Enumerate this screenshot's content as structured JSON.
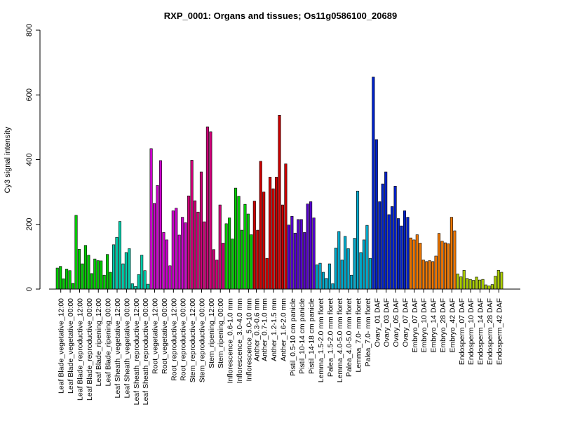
{
  "chart_data": {
    "type": "bar",
    "title": "RXP_0001: Organs and tissues; Os11g0586100_20689",
    "xlabel": "",
    "ylabel": "Cy3 signal intensity",
    "ylim": [
      0,
      800
    ],
    "yticks": [
      0,
      200,
      400,
      600,
      800
    ],
    "grid": false,
    "groups": [
      {
        "label": "Leaf Blade_vegetative_12:00",
        "color": "#00cc00",
        "values": [
          65,
          70,
          32
        ]
      },
      {
        "label": "Leaf Blade_vegetative_00:00",
        "color": "#00cc00",
        "values": [
          62,
          57,
          18
        ]
      },
      {
        "label": "Leaf Blade_reproductive_12:00",
        "color": "#00cc00",
        "values": [
          228,
          123,
          78
        ]
      },
      {
        "label": "Leaf Blade_reproductive_00:00",
        "color": "#00cc00",
        "values": [
          135,
          105,
          48
        ]
      },
      {
        "label": "Leaf Blade_ripening_12:00",
        "color": "#00cc00",
        "values": [
          93,
          88,
          87
        ]
      },
      {
        "label": "Leaf Blade_ripening_00:00",
        "color": "#00cc00",
        "values": [
          43,
          107,
          52
        ]
      },
      {
        "label": "Leaf Sheath_vegetative_12:00",
        "color": "#00ccaa",
        "values": [
          137,
          160,
          209
        ]
      },
      {
        "label": "Leaf Sheath_vegetative_00:00",
        "color": "#00ccaa",
        "values": [
          78,
          113,
          125
        ]
      },
      {
        "label": "Leaf Sheath_reproductive_12:00",
        "color": "#00ccaa",
        "values": [
          17,
          8,
          45
        ]
      },
      {
        "label": "Leaf Sheath_reproductive_00:00",
        "color": "#00ccaa",
        "values": [
          105,
          57,
          15
        ]
      },
      {
        "label": "Root_vegetative_12:00",
        "color": "#cc00cc",
        "values": [
          434,
          265,
          320
        ]
      },
      {
        "label": "Root_vegetative_00:00",
        "color": "#cc00cc",
        "values": [
          397,
          175,
          152
        ]
      },
      {
        "label": "Root_reproductive_12:00",
        "color": "#cc00cc",
        "values": [
          72,
          242,
          250
        ]
      },
      {
        "label": "Root_reproductive_00:00",
        "color": "#cc00cc",
        "values": [
          167,
          222,
          205
        ]
      },
      {
        "label": "Stem_reproductive_12:00",
        "color": "#cc0077",
        "values": [
          288,
          398,
          273
        ]
      },
      {
        "label": "Stem_reproductive_00:00",
        "color": "#cc0077",
        "values": [
          238,
          362,
          208
        ]
      },
      {
        "label": "Stem_ripening_12:00",
        "color": "#cc0077",
        "values": [
          501,
          486,
          122
        ]
      },
      {
        "label": "Stem_ripening_00:00",
        "color": "#cc0077",
        "values": [
          90,
          260,
          142
        ]
      },
      {
        "label": "Inflorescence_0.6-1.0 mm",
        "color": "#00cc00",
        "values": [
          202,
          220,
          155
        ]
      },
      {
        "label": "Inflorescence_3.0-4.0 mm",
        "color": "#00cc00",
        "values": [
          312,
          287,
          182
        ]
      },
      {
        "label": "Inflorescence_5.0-10 mm",
        "color": "#00cc00",
        "values": [
          262,
          232,
          168
        ]
      },
      {
        "label": "Anther_0.3-0.6 mm",
        "color": "#cc0000",
        "values": [
          272,
          182
        ]
      },
      {
        "label": "Anther_0.7-1.0 mm",
        "color": "#cc0000",
        "values": [
          395,
          300,
          95
        ]
      },
      {
        "label": "Anther_1.2-1.5 mm",
        "color": "#cc0000",
        "values": [
          346,
          310,
          346
        ]
      },
      {
        "label": "Anther_1.6-2.0 mm",
        "color": "#cc0000",
        "values": [
          537,
          260,
          387
        ]
      },
      {
        "label": "Pistil_0.5-10 cm panicle",
        "color": "#5500cc",
        "values": [
          198,
          225,
          173
        ]
      },
      {
        "label": "Pistil_10-14 cm panicle",
        "color": "#5500cc",
        "values": [
          215,
          215,
          175
        ]
      },
      {
        "label": "Pistil_14-18 cm panicle",
        "color": "#5500cc",
        "values": [
          263,
          270,
          220
        ]
      },
      {
        "label": "Lemma_1.5-2.0 mm floret",
        "color": "#00aacc",
        "values": [
          75,
          80,
          52
        ]
      },
      {
        "label": "Palea_1.5-2.0 mm floret",
        "color": "#00aacc",
        "values": [
          33,
          78,
          17
        ]
      },
      {
        "label": "Lemma_4.0-5.0 mm floret",
        "color": "#00aacc",
        "values": [
          127,
          178,
          90
        ]
      },
      {
        "label": "Palea_4.0-5.0 mm floret",
        "color": "#00aacc",
        "values": [
          163,
          125,
          43
        ]
      },
      {
        "label": "Lemma_7.0- mm floret",
        "color": "#00aacc",
        "values": [
          157,
          303,
          113
        ]
      },
      {
        "label": "Palea_7.0- mm floret",
        "color": "#00aacc",
        "values": [
          152,
          197,
          95
        ]
      },
      {
        "label": "Ovary_01 DAF",
        "color": "#0022cc",
        "values": [
          655,
          462,
          270
        ]
      },
      {
        "label": "Ovary_03 DAF",
        "color": "#0022cc",
        "values": [
          325,
          362,
          230
        ]
      },
      {
        "label": "Ovary_05 DAF",
        "color": "#0022cc",
        "values": [
          255,
          318,
          218
        ]
      },
      {
        "label": "Ovary_07 DAF",
        "color": "#0022cc",
        "values": [
          195,
          242,
          222
        ]
      },
      {
        "label": "Embryo_07 DAF",
        "color": "#ee7700",
        "values": [
          158,
          152,
          168
        ]
      },
      {
        "label": "Embryo_10 DAF",
        "color": "#ee7700",
        "values": [
          142,
          90,
          85
        ]
      },
      {
        "label": "Embryo_14 DAF",
        "color": "#ee7700",
        "values": [
          88,
          85,
          102
        ]
      },
      {
        "label": "Embryo_28 DAF",
        "color": "#ee7700",
        "values": [
          172,
          148,
          143
        ]
      },
      {
        "label": "Embryo_42 DAF",
        "color": "#ee7700",
        "values": [
          140,
          222,
          180
        ]
      },
      {
        "label": "Endosperm_07 DAF",
        "color": "#aacc00",
        "values": [
          47,
          38,
          58
        ]
      },
      {
        "label": "Endosperm_10 DAF",
        "color": "#aacc00",
        "values": [
          33,
          30,
          27
        ]
      },
      {
        "label": "Endosperm_14 DAF",
        "color": "#aacc00",
        "values": [
          37,
          28,
          30
        ]
      },
      {
        "label": "Endosperm_28 DAF",
        "color": "#aacc00",
        "values": [
          13,
          10,
          14
        ]
      },
      {
        "label": "Endosperm_42 DAF",
        "color": "#aacc00",
        "values": [
          40,
          58,
          52
        ]
      }
    ],
    "tick_labels_shown": [
      "Leaf Blade_vegetative_12:00",
      "Leaf Blade_vegetative_00:00",
      "Leaf Blade_reproductive_12:00",
      "Leaf Blade_reproductive_00:00",
      "Leaf Blade_ripening_12:00",
      "Leaf Blade_ripening_00:00",
      "Leaf Sheath_vegetative_12:00",
      "Leaf Sheath_vegetative_00:00",
      "Leaf Sheath_reproductive_12:00",
      "Leaf Sheath_reproductive_00:00",
      "Root_vegetative_12:00",
      "Root_vegetative_00:00",
      "Root_reproductive_12:00",
      "Root_reproductive_00:00",
      "Stem_reproductive_12:00",
      "Stem_reproductive_00:00",
      "Stem_ripening_12:00",
      "Stem_ripening_00:00",
      "Inflorescence_0.6-1.0 mm",
      "Inflorescence_3.0-4.0 mm",
      "Inflorescence_5.0-10 mm",
      "Anther_0.3-0.6 mm",
      "Anther_0.7-1.0 mm",
      "Anther_1.2-1.5 mm",
      "Anther_1.6-2.0 mm",
      "Pistil_0.5-10 cm panicle",
      "Pistil_10-14 cm panicle",
      "Pistil_14-18 cm panicle",
      "Lemma_1.5-2.0 mm floret",
      "Palea_1.5-2.0 mm floret",
      "Lemma_4.0-5.0 mm floret",
      "Palea_4.0-5.0 mm floret",
      "Lemma_7.0- mm floret",
      "Palea_7.0- mm floret",
      "Ovary_01 DAF",
      "Ovary_03 DAF",
      "Ovary_05 DAF",
      "Ovary_07 DAF",
      "Embryo_07 DAF",
      "Embryo_10 DAF",
      "Embryo_14 DAF",
      "Embryo_28 DAF",
      "Embryo_42 DAF",
      "Endosperm_07 DAF",
      "Endosperm_10 DAF",
      "Endosperm_14 DAF",
      "Endosperm_28 DAF",
      "Endosperm_42 DAF"
    ]
  }
}
